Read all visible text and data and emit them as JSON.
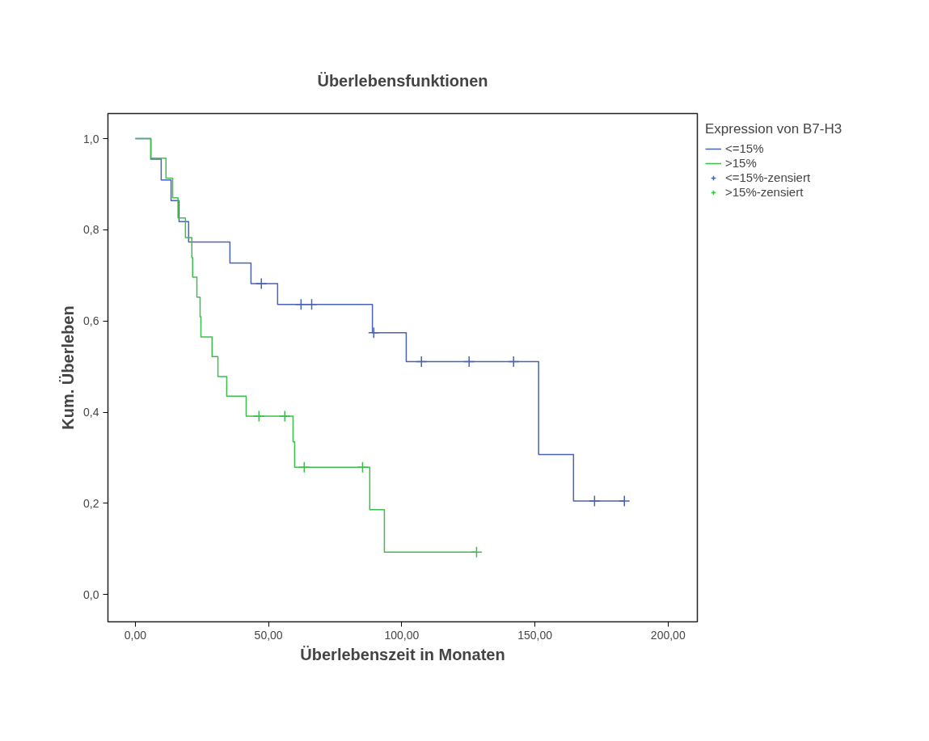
{
  "chart_data": {
    "type": "step",
    "title": "Überlebensfunktionen",
    "xlabel": "Überlebenszeit in Monaten",
    "ylabel": "Kum. Überleben",
    "legend_title": "Expression von B7-H3",
    "legend": "right",
    "grid": false,
    "xlim": [
      -10.3,
      211
    ],
    "ylim": [
      -0.06,
      1.055
    ],
    "xticks": [
      {
        "value": 0,
        "label": "0,00"
      },
      {
        "value": 50,
        "label": "50,00"
      },
      {
        "value": 100,
        "label": "100,00"
      },
      {
        "value": 150,
        "label": "150,00"
      },
      {
        "value": 200,
        "label": "200,00"
      }
    ],
    "yticks": [
      {
        "value": 0,
        "label": "0,0"
      },
      {
        "value": 0.2,
        "label": "0,2"
      },
      {
        "value": 0.4,
        "label": "0,4"
      },
      {
        "value": 0.6,
        "label": "0,6"
      },
      {
        "value": 0.8,
        "label": "0,8"
      },
      {
        "value": 1.0,
        "label": "1,0"
      }
    ],
    "series": [
      {
        "name": "<=15%",
        "color": "#4a62b6",
        "x": [
          0,
          5.8,
          9.7,
          13.4,
          16.4,
          20.0,
          35.5,
          43.4,
          53.4,
          89.0,
          101.7,
          151.4,
          164.5,
          183.6
        ],
        "values": [
          1.0,
          0.955,
          0.909,
          0.864,
          0.818,
          0.773,
          0.727,
          0.682,
          0.636,
          0.574,
          0.511,
          0.307,
          0.205,
          0.205
        ]
      },
      {
        "name": ">15%",
        "color": "#3cbf4a",
        "x": [
          0,
          5.8,
          11.5,
          14.0,
          16.0,
          18.8,
          21.2,
          21.5,
          23.1,
          24.3,
          24.6,
          28.8,
          31.0,
          34.3,
          41.6,
          59.2,
          59.8,
          88.0,
          93.5,
          128.1
        ],
        "values": [
          1.0,
          0.957,
          0.913,
          0.87,
          0.826,
          0.783,
          0.739,
          0.696,
          0.652,
          0.609,
          0.565,
          0.522,
          0.478,
          0.435,
          0.391,
          0.335,
          0.279,
          0.186,
          0.093,
          0.093
        ]
      },
      {
        "name": "<=15%-zensiert",
        "type": "scatter",
        "marker": "cross",
        "color": "#4a62b6",
        "x": [
          47.3,
          62.2,
          66.2,
          89.5,
          107.4,
          125.3,
          142.0,
          172.4,
          183.6
        ],
        "values": [
          0.682,
          0.636,
          0.636,
          0.574,
          0.511,
          0.511,
          0.511,
          0.205,
          0.205
        ]
      },
      {
        "name": ">15%-zensiert",
        "type": "scatter",
        "marker": "cross",
        "color": "#3cbf4a",
        "x": [
          46.4,
          56.1,
          63.4,
          85.3,
          128.1
        ],
        "values": [
          0.391,
          0.391,
          0.279,
          0.279,
          0.093
        ]
      }
    ]
  }
}
